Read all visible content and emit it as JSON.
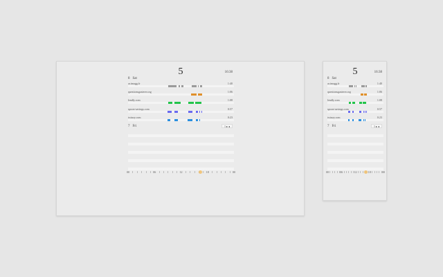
{
  "header": {
    "day_number": "5",
    "time": "16:38"
  },
  "today": {
    "day_number": "8",
    "day_name": "Sat",
    "rows": [
      {
        "domain": "ar.imagg.fr",
        "duration": "1:40",
        "color": "#9a9a9a",
        "segments": [
          [
            0.38,
            0.46
          ],
          [
            0.48,
            0.49
          ],
          [
            0.5,
            0.52
          ],
          [
            0.6,
            0.65
          ],
          [
            0.66,
            0.67
          ],
          [
            0.68,
            0.7
          ]
        ]
      },
      {
        "domain": "questionsgasterer.org",
        "duration": "1:06",
        "color": "#e0902a",
        "segments": [
          [
            0.595,
            0.645
          ],
          [
            0.66,
            0.7
          ]
        ]
      },
      {
        "domain": "lendly.com",
        "duration": "1:08",
        "color": "#22c44a",
        "segments": [
          [
            0.38,
            0.42
          ],
          [
            0.44,
            0.46
          ],
          [
            0.45,
            0.5
          ],
          [
            0.57,
            0.62
          ],
          [
            0.635,
            0.69
          ]
        ]
      },
      {
        "domain": "spoon-savings.com",
        "duration": "0:57",
        "color": "#6a6af0",
        "segments": [
          [
            0.37,
            0.41
          ],
          [
            0.44,
            0.47
          ],
          [
            0.57,
            0.61
          ],
          [
            0.64,
            0.66
          ],
          [
            0.67,
            0.68
          ],
          [
            0.69,
            0.7
          ]
        ]
      },
      {
        "domain": "twinzy.com",
        "duration": "0:23",
        "color": "#2a8fe0",
        "segments": [
          [
            0.37,
            0.4
          ],
          [
            0.44,
            0.47
          ],
          [
            0.56,
            0.61
          ],
          [
            0.64,
            0.66
          ],
          [
            0.67,
            0.68
          ]
        ]
      }
    ]
  },
  "yesterday": {
    "day_number": "7",
    "day_name": "Fri",
    "nav_label": "1 ▸ ◂"
  },
  "timeline": {
    "labels": [
      "00",
      "06",
      "12",
      "18",
      "00"
    ],
    "now_position": 0.68
  }
}
